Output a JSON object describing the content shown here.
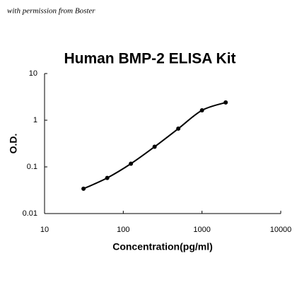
{
  "chart_data": {
    "type": "line",
    "annotation": "with permission from Boster",
    "title": "Human BMP-2 ELISA Kit",
    "x_label": "Concentration(pg/ml)",
    "y_label": "O.D.",
    "x": [
      31.25,
      62.5,
      125,
      250,
      500,
      1000,
      2000
    ],
    "series": [
      {
        "color": "#000000",
        "values": [
          0.034,
          0.058,
          0.117,
          0.27,
          0.66,
          1.63,
          2.4
        ]
      }
    ],
    "xlim": [
      10,
      10000
    ],
    "ylim": [
      0.01,
      10
    ],
    "xticks": [
      10,
      100,
      1000,
      10000
    ],
    "yticks": [
      0.01,
      0.1,
      1,
      10
    ],
    "xscale": "log",
    "yscale": "log",
    "markers": true,
    "smooth": true
  }
}
